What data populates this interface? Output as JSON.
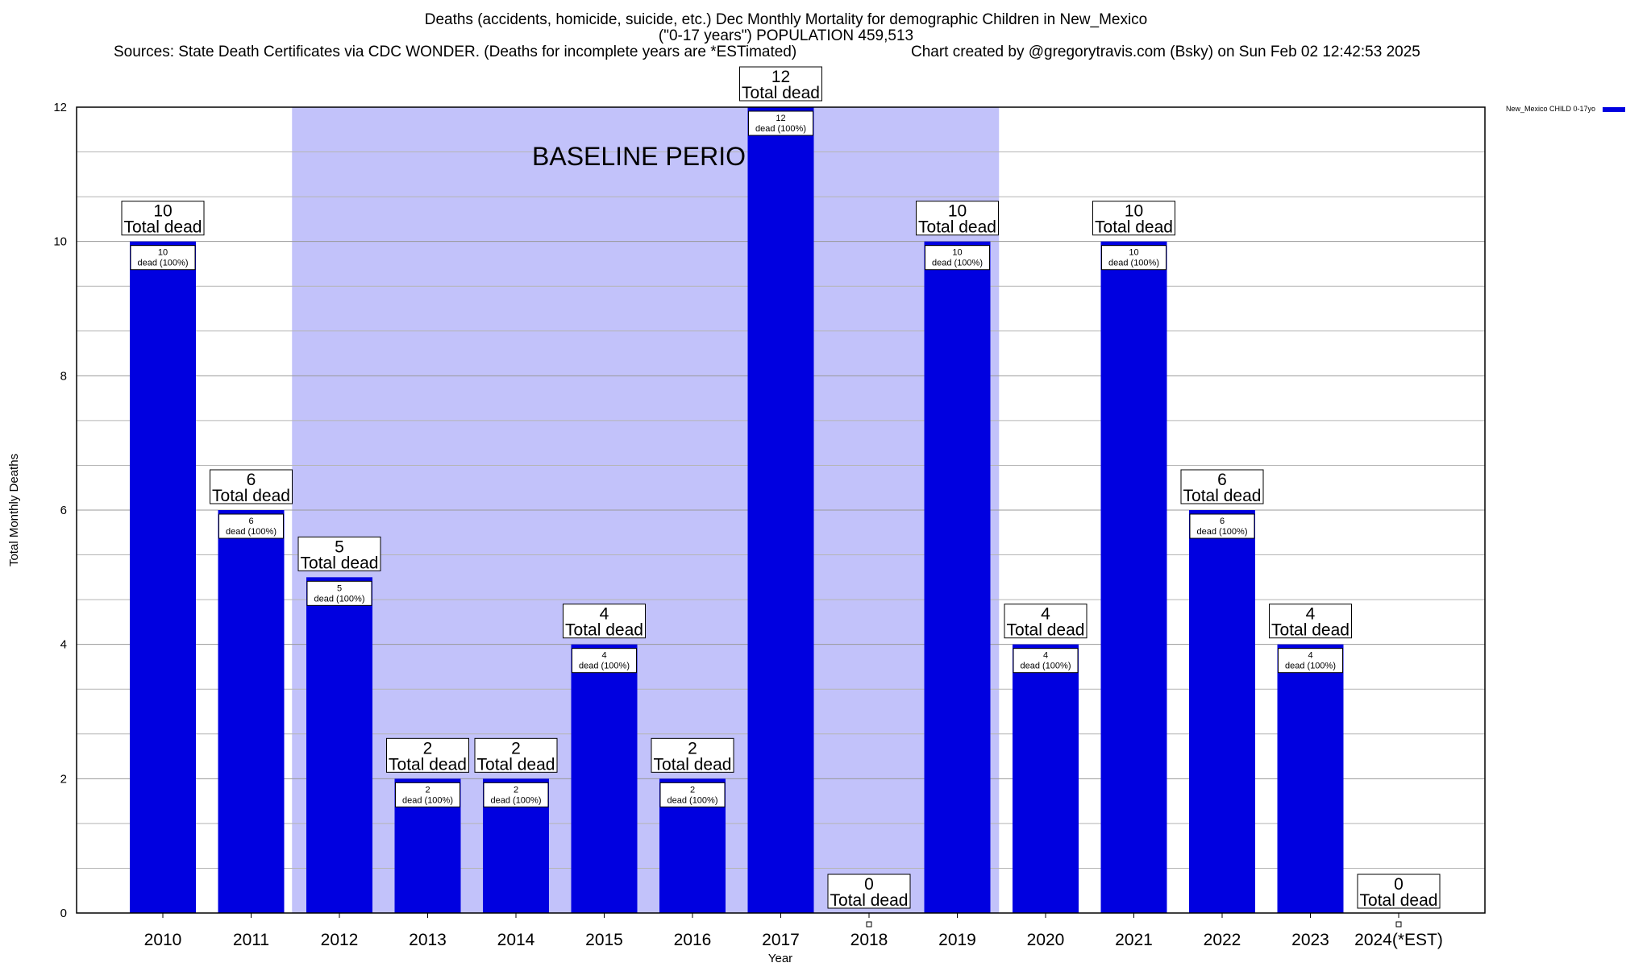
{
  "title": {
    "line1": "Deaths (accidents, homicide, suicide, etc.) Dec Monthly Mortality for demographic Children in New_Mexico",
    "line2": "(\"0-17 years\") POPULATION 459,513",
    "sources": "Sources: State Death Certificates via CDC WONDER. (Deaths for incomplete years are *ESTimated)",
    "credit": "Chart created by @gregorytravis.com (Bsky) on Sun Feb 02 12:42:53 2025"
  },
  "legend": {
    "label": "New_Mexico CHILD 0-17yo"
  },
  "colors": {
    "bar": "#0000e0",
    "baseline": "#c2c2fa",
    "grid": "#b5b5b5"
  },
  "chart_data": {
    "type": "bar",
    "xlabel": "Year",
    "ylabel": "Total Monthly Deaths",
    "ylim": [
      0,
      12
    ],
    "yticks": [
      0,
      2,
      4,
      6,
      8,
      10,
      12
    ],
    "grid": true,
    "legend_position": "top-right",
    "categories": [
      "2010",
      "2011",
      "2012",
      "2013",
      "2014",
      "2015",
      "2016",
      "2017",
      "2018",
      "2019",
      "2020",
      "2021",
      "2022",
      "2023",
      "2024(*EST)"
    ],
    "series": [
      {
        "name": "New_Mexico CHILD 0-17yo",
        "values": [
          10,
          6,
          5,
          2,
          2,
          4,
          2,
          12,
          0,
          10,
          4,
          10,
          6,
          4,
          0
        ]
      }
    ],
    "total_label": "Total dead",
    "inner_labels": [
      "dead (100%)",
      "dead (100%)",
      "dead (100%)",
      "dead (100%)",
      "dead (100%)",
      "dead (100%)",
      "dead (100%)",
      "dead (100%)",
      "",
      "dead (100%)",
      "dead (100%)",
      "dead (100%)",
      "dead (100%)",
      "dead (100%)",
      ""
    ],
    "baseline": {
      "label": "BASELINE PERIOD",
      "from": "2012",
      "to": "2019"
    }
  }
}
